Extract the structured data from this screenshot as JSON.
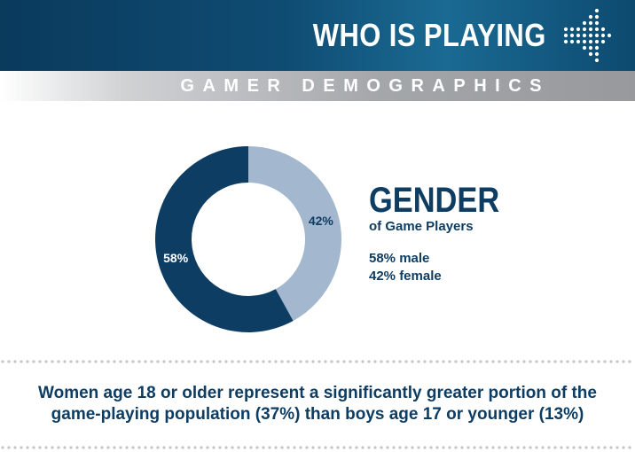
{
  "header": {
    "title": "WHO IS PLAYING",
    "subtitle": "GAMER DEMOGRAPHICS"
  },
  "chart_data": {
    "type": "pie",
    "variant": "donut",
    "title": "GENDER",
    "subtitle": "of Game Players",
    "slices": [
      {
        "label": "58%",
        "value": 58,
        "color": "#0e3d63"
      },
      {
        "label": "42%",
        "value": 42,
        "color": "#a3b8cf"
      }
    ]
  },
  "legend": {
    "title": "GENDER",
    "subtitle": "of Game Players",
    "items": [
      "58% male",
      "42% female"
    ]
  },
  "caption": {
    "line1": "Women age 18 or older represent a significantly greater portion of the",
    "line2": "game-playing population (37%) than boys age 17 or younger (13%)"
  },
  "colors": {
    "navy": "#0e3d63",
    "light_blue": "#a3b8cf",
    "banner": "#0f4c73",
    "gray_banner": "#9a9c9f",
    "divider": "#c3c5c7"
  },
  "icons": [
    "dotted-arrow-icon"
  ]
}
